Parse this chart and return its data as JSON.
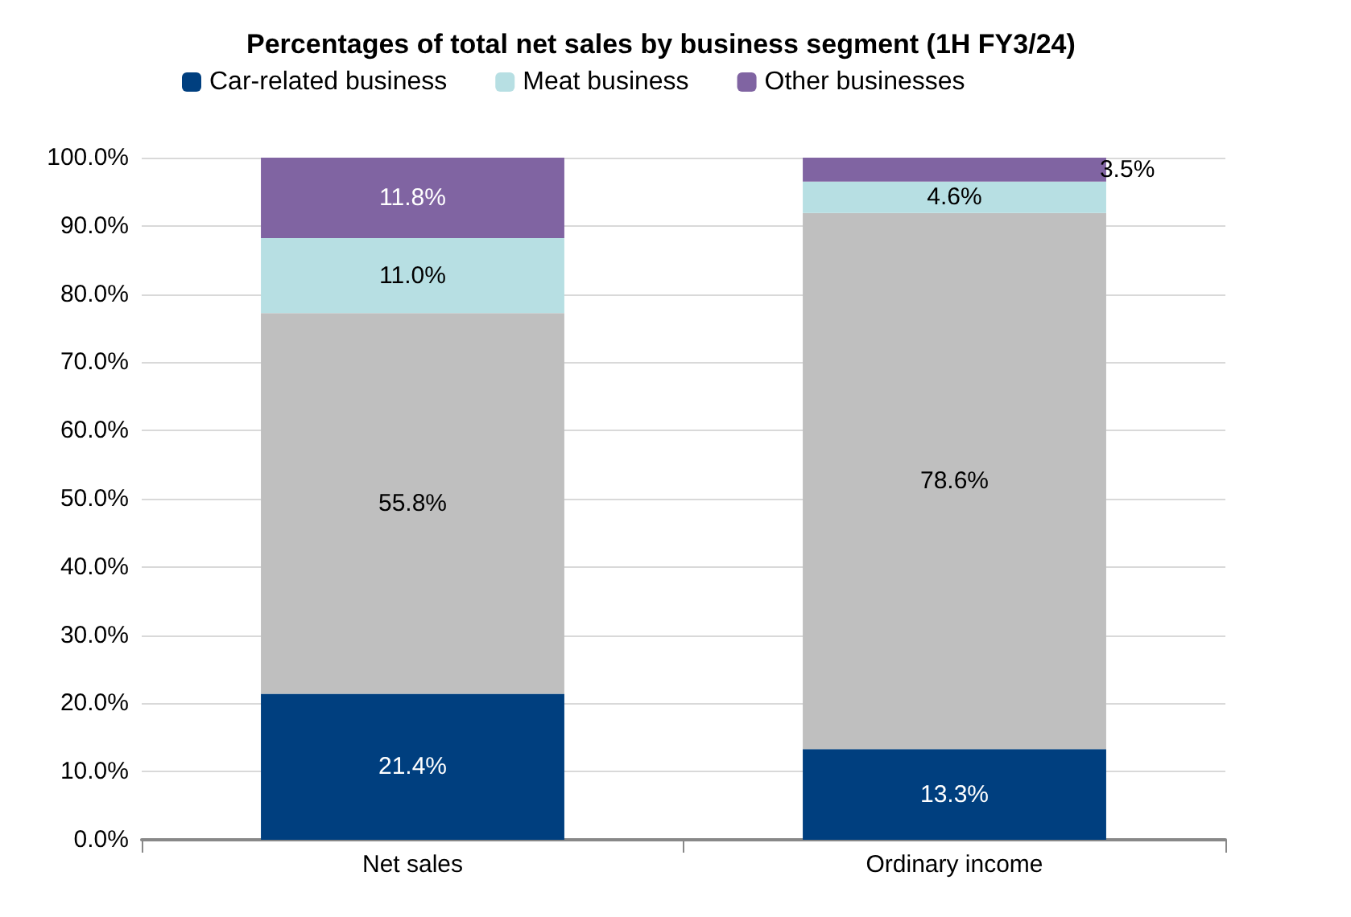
{
  "chart_data": {
    "type": "bar",
    "stacked": true,
    "title": "Percentages of total net sales by business segment (1H FY3/24)",
    "categories": [
      "Net sales",
      "Ordinary income"
    ],
    "series": [
      {
        "name": "Car-related business",
        "color": "#003f7f",
        "values": [
          21.4,
          13.3
        ],
        "value_labels": [
          "21.4%",
          "13.3%"
        ]
      },
      {
        "color": "#bfbfbf",
        "values": [
          55.8,
          78.6
        ],
        "value_labels": [
          "55.8%",
          "78.6%"
        ]
      },
      {
        "name": "Meat business",
        "color": "#b7dfe3",
        "values": [
          11.0,
          4.6
        ],
        "value_labels": [
          "11.0%",
          "4.6%"
        ]
      },
      {
        "name": "Other businesses",
        "color": "#8064a2",
        "values": [
          11.8,
          3.5
        ],
        "value_labels": [
          "11.8%",
          "3.5%"
        ]
      }
    ],
    "ylim": [
      0,
      100
    ],
    "yticks": [
      {
        "value": 0,
        "label": "0.0%"
      },
      {
        "value": 10,
        "label": "10.0%"
      },
      {
        "value": 20,
        "label": "20.0%"
      },
      {
        "value": 30,
        "label": "30.0%"
      },
      {
        "value": 40,
        "label": "40.0%"
      },
      {
        "value": 50,
        "label": "50.0%"
      },
      {
        "value": 60,
        "label": "60.0%"
      },
      {
        "value": 70,
        "label": "70.0%"
      },
      {
        "value": 80,
        "label": "80.0%"
      },
      {
        "value": 90,
        "label": "90.0%"
      },
      {
        "value": 100,
        "label": "100.0%"
      }
    ],
    "grid": "y",
    "legend": "top"
  }
}
